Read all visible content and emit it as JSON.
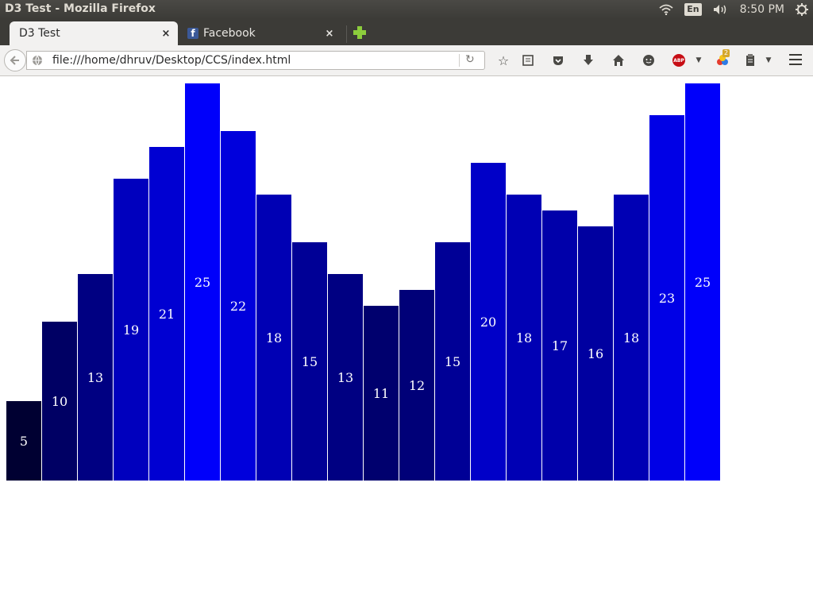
{
  "os": {
    "window_title": "D3 Test - Mozilla Firefox",
    "lang": "En",
    "clock": "8:50 PM"
  },
  "tabs": [
    {
      "label": "D3 Test",
      "close": "×"
    },
    {
      "label": "Facebook",
      "close": "×"
    }
  ],
  "nav": {
    "url": "file:///home/dhruv/Desktop/CCS/index.html",
    "addon_badge": "2",
    "abp_text": "ABP"
  },
  "chart_data": {
    "type": "bar",
    "values": [
      5,
      10,
      13,
      19,
      21,
      25,
      22,
      18,
      15,
      13,
      11,
      12,
      15,
      20,
      18,
      17,
      16,
      18,
      23,
      25
    ],
    "data_labels": true,
    "color_scale": "rgb(0, 0, value*10)",
    "label_color": "#ffffff"
  }
}
